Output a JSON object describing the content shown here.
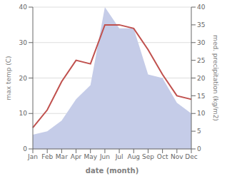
{
  "chart_data": {
    "type": "line",
    "categories": [
      "Jan",
      "Feb",
      "Mar",
      "Apr",
      "May",
      "Jun",
      "Jul",
      "Aug",
      "Sep",
      "Oct",
      "Nov",
      "Dec"
    ],
    "xlabel": "date (month)",
    "ylabel": "max temp (C)",
    "y2label": "med. precipitation (kg/m2)",
    "series": [
      {
        "type": "area",
        "axis": "y2",
        "color": "#c5cce8",
        "values": [
          4,
          5,
          8,
          14,
          18,
          40,
          34,
          34,
          21,
          20,
          13,
          10
        ]
      },
      {
        "type": "line",
        "color": "#c0504d",
        "values": [
          6,
          11,
          19,
          25,
          24,
          35,
          35,
          34,
          28,
          21,
          15,
          14
        ]
      }
    ],
    "ylim": [
      0,
      40
    ],
    "yticks": [
      0,
      10,
      20,
      30,
      40
    ],
    "y2lim": [
      0,
      40
    ],
    "y2ticks": [
      0,
      5,
      10,
      15,
      20,
      25,
      30,
      35,
      40
    ],
    "grid": true
  }
}
